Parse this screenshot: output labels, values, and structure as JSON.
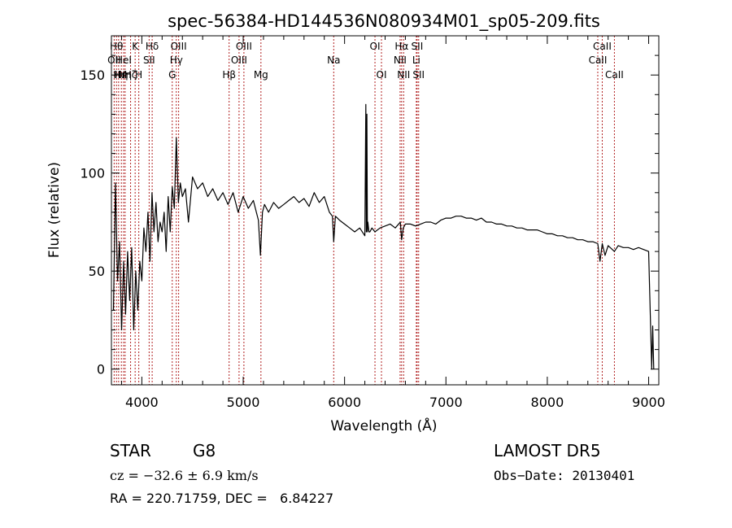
{
  "chart_data": {
    "type": "line",
    "title": "spec-56384-HD144536N080934M01_sp05-209.fits",
    "xlabel": "Wavelength (Å)",
    "ylabel": "Flux (relative)",
    "xlim": [
      3700,
      9100
    ],
    "ylim": [
      -8,
      170
    ],
    "xticks": [
      4000,
      5000,
      6000,
      7000,
      8000,
      9000
    ],
    "yticks": [
      0,
      50,
      100,
      150
    ],
    "grid": false,
    "line_color": "#000000",
    "marker_color": "#b22222",
    "series": [
      {
        "x": [
          3720,
          3740,
          3760,
          3780,
          3800,
          3820,
          3840,
          3860,
          3880,
          3900,
          3920,
          3940,
          3960,
          3980,
          4000,
          4020,
          4040,
          4060,
          4080,
          4100,
          4120,
          4140,
          4160,
          4180,
          4200,
          4220,
          4240,
          4260,
          4280,
          4300,
          4320,
          4340,
          4360,
          4380,
          4400,
          4430,
          4460,
          4500,
          4550,
          4600,
          4650,
          4700,
          4750,
          4800,
          4850,
          4900,
          4950,
          5000,
          5050,
          5100,
          5150,
          5170,
          5190,
          5210,
          5250,
          5300,
          5350,
          5400,
          5450,
          5500,
          5550,
          5600,
          5650,
          5700,
          5750,
          5800,
          5850,
          5880,
          5893,
          5910,
          5950,
          6000,
          6050,
          6100,
          6150,
          6200,
          6210,
          6215,
          6220,
          6225,
          6230,
          6240,
          6250,
          6270,
          6300,
          6350,
          6400,
          6450,
          6500,
          6550,
          6563,
          6580,
          6600,
          6650,
          6700,
          6750,
          6800,
          6850,
          6900,
          6950,
          7000,
          7050,
          7100,
          7150,
          7200,
          7250,
          7300,
          7350,
          7400,
          7450,
          7500,
          7550,
          7600,
          7650,
          7700,
          7750,
          7800,
          7850,
          7900,
          7950,
          8000,
          8050,
          8100,
          8150,
          8200,
          8250,
          8300,
          8350,
          8400,
          8450,
          8498,
          8520,
          8542,
          8570,
          8600,
          8662,
          8700,
          8750,
          8800,
          8850,
          8900,
          8950,
          9000,
          9030,
          9040,
          9050
        ],
        "values": [
          30,
          95,
          45,
          65,
          20,
          55,
          28,
          60,
          35,
          62,
          20,
          50,
          30,
          55,
          45,
          72,
          60,
          80,
          55,
          90,
          70,
          85,
          65,
          75,
          70,
          80,
          60,
          88,
          70,
          93,
          82,
          118,
          85,
          95,
          88,
          92,
          75,
          98,
          92,
          95,
          88,
          92,
          86,
          90,
          84,
          90,
          80,
          88,
          82,
          86,
          76,
          58,
          80,
          84,
          80,
          85,
          82,
          84,
          86,
          88,
          85,
          87,
          83,
          90,
          85,
          88,
          80,
          78,
          65,
          78,
          76,
          74,
          72,
          70,
          72,
          68,
          135,
          70,
          130,
          70,
          75,
          70,
          70,
          72,
          70,
          72,
          73,
          74,
          72,
          75,
          66,
          72,
          74,
          74,
          73,
          74,
          75,
          75,
          74,
          76,
          77,
          77,
          78,
          78,
          77,
          77,
          76,
          77,
          75,
          75,
          74,
          74,
          73,
          73,
          72,
          72,
          71,
          71,
          71,
          70,
          69,
          69,
          68,
          68,
          67,
          67,
          66,
          66,
          65,
          65,
          64,
          55,
          64,
          58,
          63,
          60,
          63,
          62,
          62,
          61,
          62,
          61,
          60,
          0,
          22,
          0
        ]
      }
    ],
    "lines": [
      {
        "x": 3727,
        "top": "OII",
        "row": 1
      },
      {
        "x": 3750,
        "top": "Hθ",
        "row": 0
      },
      {
        "x": 3771,
        "top": "Hι",
        "row": 2
      },
      {
        "x": 3798,
        "top": "Hη",
        "row": 2
      },
      {
        "x": 3820,
        "top": "HeI",
        "row": 1
      },
      {
        "x": 3835,
        "top": "Hη",
        "row": 2
      },
      {
        "x": 3889,
        "top": "Hζ",
        "row": 2
      },
      {
        "x": 3934,
        "top": "K",
        "row": 0
      },
      {
        "x": 3970,
        "top": "H",
        "row": 2
      },
      {
        "x": 4072,
        "top": "SII",
        "row": 1
      },
      {
        "x": 4102,
        "top": "Hδ",
        "row": 0
      },
      {
        "x": 4300,
        "top": "G",
        "row": 2
      },
      {
        "x": 4340,
        "top": "Hγ",
        "row": 1
      },
      {
        "x": 4363,
        "top": "OIII",
        "row": 0
      },
      {
        "x": 4861,
        "top": "Hβ",
        "row": 2
      },
      {
        "x": 4959,
        "top": "OIII",
        "row": 1
      },
      {
        "x": 5007,
        "top": "OIII",
        "row": 0
      },
      {
        "x": 5175,
        "top": "Mg",
        "row": 2
      },
      {
        "x": 5893,
        "top": "Na",
        "row": 1
      },
      {
        "x": 6300,
        "top": "OI",
        "row": 0
      },
      {
        "x": 6364,
        "top": "OI",
        "row": 2
      },
      {
        "x": 6548,
        "top": "NII",
        "row": 1
      },
      {
        "x": 6563,
        "top": "Hα",
        "row": 0
      },
      {
        "x": 6583,
        "top": "NII",
        "row": 2
      },
      {
        "x": 6708,
        "top": "Li",
        "row": 1
      },
      {
        "x": 6716,
        "top": "SII",
        "row": 0
      },
      {
        "x": 6731,
        "top": "SII",
        "row": 2
      },
      {
        "x": 8498,
        "top": "CaII",
        "row": 1
      },
      {
        "x": 8542,
        "top": "CaII",
        "row": 0
      },
      {
        "x": 8662,
        "top": "CaII",
        "row": 2
      }
    ]
  },
  "info": {
    "object_class": "STAR",
    "subclass": "G8",
    "survey": "LAMOST DR5",
    "cz": "cz = −32.6 ± 6.9 km/s",
    "obs_date": "Obs−Date: 20130401",
    "coords": "RA = 220.71759, DEC =   6.84227"
  }
}
